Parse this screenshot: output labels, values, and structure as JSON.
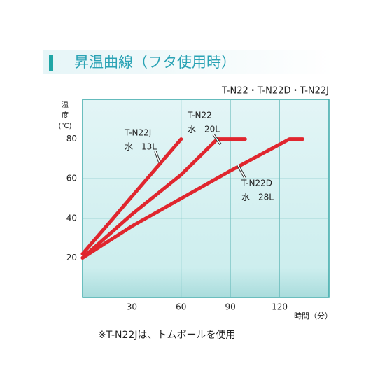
{
  "chart_data": {
    "type": "line",
    "title": "昇温曲線（フタ使用時）",
    "subtitle": "T-N22・T-N22D・T-N22J",
    "y_label_lines": [
      "温",
      "度",
      "(℃)"
    ],
    "x_label": "時間（分）",
    "footnote": "※T-N22Jは、トムボールを使用",
    "xlim": [
      0,
      150
    ],
    "xticks": [
      30,
      60,
      90,
      120
    ],
    "ylim": [
      0,
      100
    ],
    "yticks": [
      20,
      40,
      60,
      80
    ],
    "grid": true,
    "series": [
      {
        "name": "T-N22J",
        "note": "水　13L",
        "color": "#e0262e",
        "x": [
          0,
          30,
          60
        ],
        "values": [
          22,
          51,
          80
        ]
      },
      {
        "name": "T-N22",
        "note": "水　20L",
        "color": "#e0262e",
        "x": [
          0,
          30,
          60,
          82,
          99
        ],
        "values": [
          20,
          42,
          62,
          80,
          80
        ]
      },
      {
        "name": "T-N22D",
        "note": "水　28L",
        "color": "#e0262e",
        "x": [
          0,
          30,
          60,
          90,
          126,
          134
        ],
        "values": [
          20,
          36,
          50,
          64,
          80,
          80
        ]
      }
    ]
  }
}
